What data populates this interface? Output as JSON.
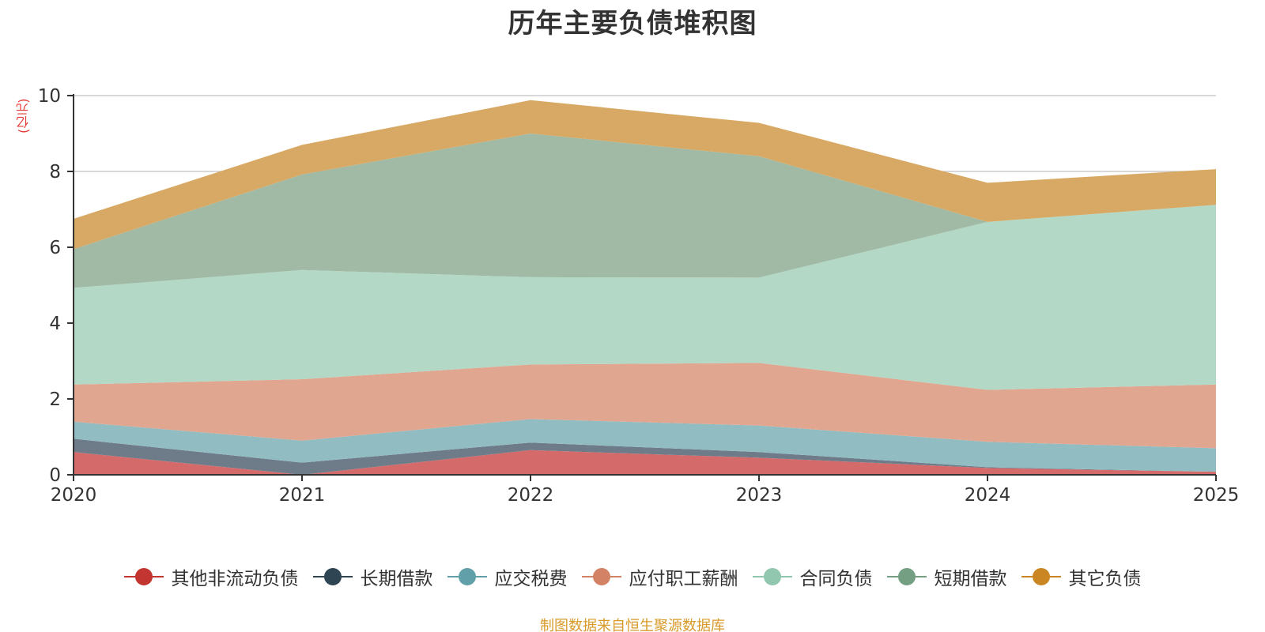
{
  "colors": {
    "title": "#333333",
    "axis": "#333333",
    "grid": "#cccccc",
    "unit": "#e53935",
    "source": "#d89a2a"
  },
  "chart_data": {
    "type": "area",
    "title": "历年主要负债堆积图",
    "ylabel": "(亿元)",
    "x": [
      "2020",
      "2021",
      "2022",
      "2023",
      "2024",
      "2025"
    ],
    "ylim": [
      0,
      10
    ],
    "yticks": [
      "0",
      "2",
      "4",
      "6",
      "8",
      "10"
    ],
    "grid": true,
    "stacked": true,
    "legend_position": "bottom",
    "series": [
      {
        "name": "其他非流动负债",
        "color": "#c23531",
        "fill": "#d46a6a",
        "values": [
          0.6,
          0.0,
          0.65,
          0.45,
          0.18,
          0.08
        ]
      },
      {
        "name": "长期借款",
        "color": "#2f4554",
        "fill": "#6e7b89",
        "values": [
          0.35,
          0.32,
          0.2,
          0.15,
          0.02,
          0.0
        ]
      },
      {
        "name": "应交税费",
        "color": "#61a0a8",
        "fill": "#91bcc2",
        "values": [
          0.45,
          0.58,
          0.62,
          0.7,
          0.67,
          0.62
        ]
      },
      {
        "name": "应付职工薪酬",
        "color": "#d48265",
        "fill": "#e0a690",
        "values": [
          0.98,
          1.62,
          1.44,
          1.65,
          1.37,
          1.68
        ]
      },
      {
        "name": "合同负债",
        "color": "#91c7ae",
        "fill": "#b3d8c6",
        "values": [
          2.55,
          2.88,
          2.3,
          2.25,
          4.43,
          4.74
        ]
      },
      {
        "name": "短期借款",
        "color": "#749f83",
        "fill": "#a0baa5",
        "values": [
          1.02,
          2.52,
          3.79,
          3.2,
          0.0,
          0.0
        ]
      },
      {
        "name": "其它负债",
        "color": "#ca8622",
        "fill": "#d8a964",
        "values": [
          0.8,
          0.78,
          0.88,
          0.88,
          1.03,
          0.94
        ]
      }
    ]
  },
  "source_text": "制图数据来自恒生聚源数据库"
}
